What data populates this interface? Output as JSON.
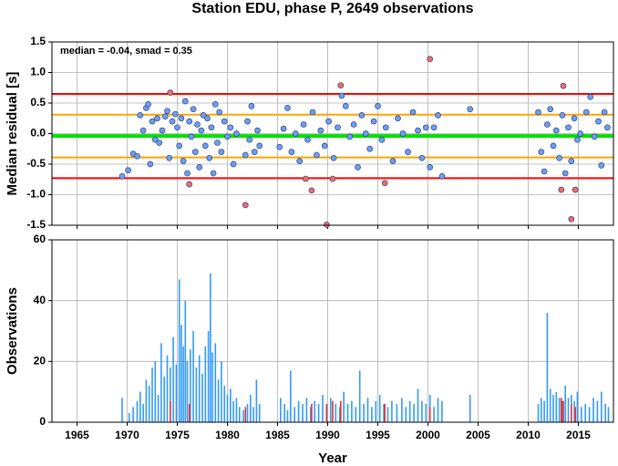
{
  "chart_data": [
    {
      "type": "scatter",
      "title": "Station EDU, phase P, 2649 observations",
      "ylabel": "Median residual [s]",
      "annotation": "median = -0.04, smad = 0.35",
      "xlim": [
        1962.5,
        2018.5
      ],
      "xticks": [
        1965,
        1970,
        1975,
        1980,
        1985,
        1990,
        1995,
        2000,
        2005,
        2010,
        2015
      ],
      "ylim": [
        -1.5,
        1.5
      ],
      "yticks": [
        -1.5,
        {
          "value": -1,
          "label": "-1.0"
        },
        -0.5,
        {
          "value": 0,
          "label": "0.0"
        },
        0.5,
        {
          "value": 1,
          "label": "1.0"
        },
        1.5
      ],
      "grid": true,
      "hlines": [
        {
          "value": 0.65,
          "color": "#ff0000",
          "linewidth": 2
        },
        {
          "value": 0.31,
          "color": "#ffa500",
          "linewidth": 2
        },
        {
          "value": -0.04,
          "color": "#00e000",
          "linewidth": 4
        },
        {
          "value": -0.39,
          "color": "#ffa500",
          "linewidth": 2
        },
        {
          "value": -0.73,
          "color": "#ff0000",
          "linewidth": 2
        }
      ],
      "series": [
        {
          "color": "#6b9ef5",
          "x": [
            1969.5,
            1970.1,
            1970.6,
            1971.0,
            1971.3,
            1971.6,
            1971.9,
            1972.1,
            1972.3,
            1972.5,
            1972.8,
            1973.0,
            1973.2,
            1973.5,
            1973.8,
            1974.0,
            1974.2,
            1974.5,
            1974.8,
            1975.0,
            1975.2,
            1975.4,
            1975.6,
            1975.8,
            1976.0,
            1976.2,
            1976.4,
            1976.6,
            1976.8,
            1977.0,
            1977.2,
            1977.4,
            1977.6,
            1977.8,
            1978.0,
            1978.2,
            1978.4,
            1978.6,
            1978.8,
            1979.0,
            1979.2,
            1979.4,
            1979.7,
            1980.0,
            1980.3,
            1980.6,
            1980.9,
            1981.8,
            1982.0,
            1982.2,
            1982.4,
            1982.7,
            1983.0,
            1983.2,
            1985.2,
            1985.6,
            1986.0,
            1986.4,
            1986.8,
            1987.2,
            1987.6,
            1988.0,
            1988.5,
            1988.9,
            1989.3,
            1989.7,
            1990.1,
            1990.6,
            1991.0,
            1991.4,
            1991.8,
            1992.2,
            1992.6,
            1993.0,
            1993.4,
            1993.8,
            1994.2,
            1994.6,
            1995.0,
            1995.4,
            1995.8,
            1996.5,
            1997.0,
            1997.5,
            1998.0,
            1998.5,
            1999.0,
            1999.4,
            1999.8,
            2000.2,
            2000.6,
            2001.0,
            2001.4,
            2004.2,
            2011.0,
            2011.3,
            2011.6,
            2011.9,
            2012.2,
            2012.5,
            2012.8,
            2013.1,
            2013.4,
            2013.7,
            2014.0,
            2014.3,
            2014.6,
            2014.9,
            2015.2,
            2015.8,
            2016.2,
            2016.6,
            2017.0,
            2017.3,
            2017.6,
            2017.9
          ],
          "values": [
            -0.7,
            -0.6,
            -0.33,
            -0.37,
            0.3,
            0.05,
            0.42,
            0.48,
            -0.5,
            0.2,
            -0.1,
            0.25,
            -0.15,
            0.05,
            0.28,
            0.37,
            -0.4,
            0.2,
            0.32,
            0.1,
            -0.2,
            0.25,
            -0.45,
            0.53,
            -0.65,
            0.2,
            -0.05,
            0.4,
            -0.3,
            0.15,
            -0.55,
            0.05,
            0.3,
            -0.2,
            0.25,
            -0.4,
            0.1,
            -0.65,
            0.48,
            -0.15,
            0.35,
            -0.3,
            0.2,
            -0.05,
            0.1,
            -0.5,
            0.0,
            -0.35,
            0.2,
            -0.1,
            0.45,
            -0.3,
            0.05,
            -0.2,
            -0.22,
            0.08,
            0.42,
            -0.3,
            0.0,
            -0.45,
            0.15,
            -0.1,
            0.35,
            -0.35,
            0.05,
            -0.2,
            0.2,
            -0.4,
            0.1,
            0.62,
            0.45,
            -0.05,
            0.15,
            -0.55,
            0.3,
            0.0,
            -0.25,
            0.2,
            0.45,
            -0.1,
            0.1,
            -0.45,
            0.25,
            0.0,
            -0.3,
            0.35,
            0.05,
            -0.4,
            0.1,
            -0.55,
            0.1,
            0.3,
            -0.7,
            0.4,
            0.35,
            -0.3,
            -0.62,
            0.15,
            0.4,
            -0.2,
            0.05,
            -0.4,
            0.3,
            -0.65,
            0.1,
            -0.45,
            0.25,
            -0.1,
            0.0,
            0.35,
            0.6,
            -0.05,
            0.2,
            -0.52,
            0.35,
            0.1
          ]
        },
        {
          "color": "#f26a6a",
          "x": [
            1974.3,
            1976.2,
            1981.8,
            1987.8,
            1988.4,
            1989.9,
            1990.5,
            1991.3,
            1995.7,
            2000.2,
            2013.3,
            2013.5,
            2014.3,
            2014.7
          ],
          "values": [
            0.67,
            -0.83,
            -1.17,
            -0.74,
            -0.93,
            -1.49,
            -0.74,
            0.79,
            -0.81,
            1.22,
            -0.92,
            0.78,
            -1.4,
            -0.92
          ]
        }
      ]
    },
    {
      "type": "bar",
      "xlabel": "Year",
      "ylabel": "Observations",
      "xlim": [
        1962.5,
        2018.5
      ],
      "xticks": [
        1965,
        1970,
        1975,
        1980,
        1985,
        1990,
        1995,
        2000,
        2005,
        2010,
        2015
      ],
      "ylim": [
        0,
        60
      ],
      "yticks": [
        0,
        20,
        40,
        60
      ],
      "grid": true,
      "series": [
        {
          "color": "#3399ff",
          "x": [
            1969.5,
            1970.2,
            1970.6,
            1971.0,
            1971.3,
            1971.6,
            1971.9,
            1972.2,
            1972.5,
            1972.8,
            1973.1,
            1973.4,
            1973.7,
            1974.0,
            1974.3,
            1974.6,
            1974.9,
            1975.2,
            1975.4,
            1975.6,
            1975.8,
            1976.0,
            1976.3,
            1976.6,
            1976.9,
            1977.2,
            1977.5,
            1977.8,
            1978.1,
            1978.3,
            1978.5,
            1978.8,
            1979.1,
            1979.4,
            1979.7,
            1980.0,
            1980.3,
            1980.6,
            1980.9,
            1981.2,
            1981.6,
            1982.0,
            1982.3,
            1982.6,
            1982.9,
            1983.2,
            1985.3,
            1985.7,
            1986.0,
            1986.3,
            1986.7,
            1987.1,
            1987.5,
            1987.9,
            1988.3,
            1988.7,
            1989.1,
            1989.5,
            1989.9,
            1990.3,
            1990.8,
            1991.2,
            1991.6,
            1992.0,
            1992.4,
            1992.8,
            1993.2,
            1993.6,
            1994.0,
            1994.4,
            1994.8,
            1995.2,
            1995.6,
            1996.0,
            1996.4,
            1996.9,
            1997.4,
            1997.8,
            1998.2,
            1998.6,
            1999.0,
            1999.4,
            1999.8,
            2000.2,
            2000.6,
            2001.0,
            2001.4,
            2004.2,
            2011.0,
            2011.3,
            2011.6,
            2011.9,
            2012.2,
            2012.5,
            2012.8,
            2013.1,
            2013.4,
            2013.7,
            2014.0,
            2014.3,
            2014.6,
            2014.9,
            2015.3,
            2015.7,
            2016.1,
            2016.5,
            2016.9,
            2017.3,
            2017.7,
            2018.0
          ],
          "values": [
            8,
            3,
            5,
            7,
            10,
            6,
            14,
            12,
            18,
            20,
            9,
            26,
            15,
            22,
            18,
            28,
            19,
            47,
            32,
            25,
            40,
            20,
            24,
            30,
            18,
            22,
            16,
            25,
            30,
            49,
            23,
            26,
            14,
            20,
            12,
            9,
            11,
            7,
            8,
            5,
            4,
            6,
            9,
            5,
            14,
            6,
            8,
            6,
            4,
            17,
            5,
            7,
            6,
            8,
            5,
            7,
            6,
            9,
            5,
            8,
            6,
            5,
            10,
            6,
            7,
            5,
            17,
            6,
            8,
            5,
            7,
            9,
            6,
            5,
            7,
            6,
            8,
            5,
            7,
            6,
            11,
            7,
            6,
            9,
            5,
            8,
            7,
            9,
            6,
            8,
            7,
            36,
            11,
            9,
            10,
            8,
            7,
            12,
            8,
            9,
            7,
            10,
            5,
            6,
            5,
            8,
            7,
            10,
            6,
            5
          ]
        },
        {
          "color": "#e83030",
          "x": [
            1974.3,
            1976.2,
            1981.8,
            1988.4,
            1989.9,
            1990.5,
            1991.3,
            1995.7,
            2000.2,
            2013.3,
            2013.5,
            2014.3,
            2014.7
          ],
          "values": [
            7,
            6,
            5,
            6,
            6,
            7,
            7,
            6,
            5,
            8,
            7,
            6,
            5
          ]
        }
      ]
    }
  ]
}
